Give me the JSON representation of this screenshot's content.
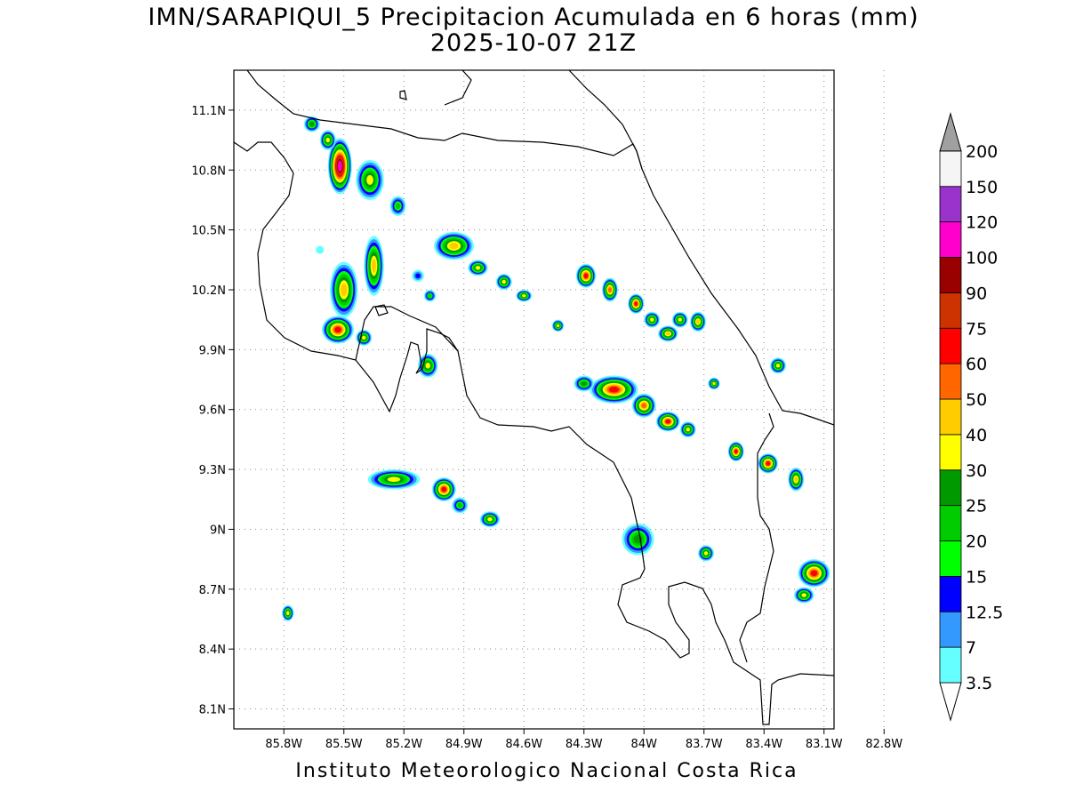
{
  "title_line1": "IMN/SARAPIQUI_5 Precipitacion Acumulada en 6 horas (mm)",
  "title_line2": "2025-10-07 21Z",
  "footer": "Instituto Meteorologico Nacional Costa Rica",
  "map": {
    "lon_range": [
      -86.05,
      -83.05
    ],
    "lat_range": [
      8.0,
      11.3
    ],
    "grid_lines": "dotted",
    "lon_ticks": [
      {
        "value": -85.8,
        "label": "85.8W"
      },
      {
        "value": -85.5,
        "label": "85.5W"
      },
      {
        "value": -85.2,
        "label": "85.2W"
      },
      {
        "value": -84.9,
        "label": "84.9W"
      },
      {
        "value": -84.6,
        "label": "84.6W"
      },
      {
        "value": -84.3,
        "label": "84.3W"
      },
      {
        "value": -84.0,
        "label": "84W"
      },
      {
        "value": -83.7,
        "label": "83.7W"
      },
      {
        "value": -83.4,
        "label": "83.4W"
      },
      {
        "value": -83.1,
        "label": "83.1W"
      },
      {
        "value": -82.8,
        "label": "82.8W"
      }
    ],
    "lat_ticks": [
      {
        "value": 11.1,
        "label": "11.1N"
      },
      {
        "value": 10.8,
        "label": "10.8N"
      },
      {
        "value": 10.5,
        "label": "10.5N"
      },
      {
        "value": 10.2,
        "label": "10.2N"
      },
      {
        "value": 9.9,
        "label": "9.9N"
      },
      {
        "value": 9.6,
        "label": "9.6N"
      },
      {
        "value": 9.3,
        "label": "9.3N"
      },
      {
        "value": 9.0,
        "label": "9N"
      },
      {
        "value": 8.7,
        "label": "8.7N"
      },
      {
        "value": 8.4,
        "label": "8.4N"
      },
      {
        "value": 8.1,
        "label": "8.1N"
      }
    ]
  },
  "colorbar": {
    "levels": [
      {
        "label": "3.5",
        "color": "#66ffff"
      },
      {
        "label": "7",
        "color": "#3399ff"
      },
      {
        "label": "12.5",
        "color": "#0000ff"
      },
      {
        "label": "15",
        "color": "#00ff00"
      },
      {
        "label": "20",
        "color": "#00cc00"
      },
      {
        "label": "25",
        "color": "#009900"
      },
      {
        "label": "30",
        "color": "#ffff00"
      },
      {
        "label": "40",
        "color": "#ffcc00"
      },
      {
        "label": "50",
        "color": "#ff6600"
      },
      {
        "label": "60",
        "color": "#ff0000"
      },
      {
        "label": "75",
        "color": "#cc3300"
      },
      {
        "label": "90",
        "color": "#990000"
      },
      {
        "label": "100",
        "color": "#ff00cc"
      },
      {
        "label": "120",
        "color": "#9933cc"
      },
      {
        "label": "150",
        "color": "#f5f5f5"
      },
      {
        "label": "200",
        "color": "#a0a0a0"
      }
    ]
  },
  "precip_cells": [
    {
      "lon": -85.52,
      "lat": 10.82,
      "rx": 0.06,
      "ry": 0.14,
      "max": "100"
    },
    {
      "lon": -85.58,
      "lat": 10.95,
      "rx": 0.04,
      "ry": 0.05,
      "max": "30"
    },
    {
      "lon": -85.66,
      "lat": 11.03,
      "rx": 0.04,
      "ry": 0.04,
      "max": "25"
    },
    {
      "lon": -85.37,
      "lat": 10.75,
      "rx": 0.07,
      "ry": 0.1,
      "max": "30"
    },
    {
      "lon": -85.23,
      "lat": 10.62,
      "rx": 0.04,
      "ry": 0.05,
      "max": "20"
    },
    {
      "lon": -84.95,
      "lat": 10.42,
      "rx": 0.1,
      "ry": 0.07,
      "max": "40"
    },
    {
      "lon": -84.83,
      "lat": 10.31,
      "rx": 0.05,
      "ry": 0.04,
      "max": "30"
    },
    {
      "lon": -84.7,
      "lat": 10.24,
      "rx": 0.04,
      "ry": 0.04,
      "max": "30"
    },
    {
      "lon": -84.6,
      "lat": 10.17,
      "rx": 0.04,
      "ry": 0.03,
      "max": "30"
    },
    {
      "lon": -85.53,
      "lat": 10.0,
      "rx": 0.08,
      "ry": 0.07,
      "max": "60"
    },
    {
      "lon": -85.5,
      "lat": 10.2,
      "rx": 0.07,
      "ry": 0.14,
      "max": "40"
    },
    {
      "lon": -85.35,
      "lat": 10.32,
      "rx": 0.05,
      "ry": 0.15,
      "max": "40"
    },
    {
      "lon": -85.4,
      "lat": 9.96,
      "rx": 0.04,
      "ry": 0.04,
      "max": "30"
    },
    {
      "lon": -85.08,
      "lat": 9.82,
      "rx": 0.05,
      "ry": 0.06,
      "max": "30"
    },
    {
      "lon": -85.07,
      "lat": 10.17,
      "rx": 0.03,
      "ry": 0.03,
      "max": "20"
    },
    {
      "lon": -85.13,
      "lat": 10.27,
      "rx": 0.03,
      "ry": 0.03,
      "max": "12.5"
    },
    {
      "lon": -85.25,
      "lat": 9.25,
      "rx": 0.13,
      "ry": 0.05,
      "max": "30"
    },
    {
      "lon": -85.0,
      "lat": 9.2,
      "rx": 0.06,
      "ry": 0.06,
      "max": "60"
    },
    {
      "lon": -84.92,
      "lat": 9.12,
      "rx": 0.04,
      "ry": 0.04,
      "max": "20"
    },
    {
      "lon": -84.77,
      "lat": 9.05,
      "rx": 0.05,
      "ry": 0.04,
      "max": "30"
    },
    {
      "lon": -84.29,
      "lat": 10.27,
      "rx": 0.05,
      "ry": 0.06,
      "max": "60"
    },
    {
      "lon": -84.17,
      "lat": 10.2,
      "rx": 0.04,
      "ry": 0.06,
      "max": "50"
    },
    {
      "lon": -84.04,
      "lat": 10.13,
      "rx": 0.04,
      "ry": 0.05,
      "max": "60"
    },
    {
      "lon": -83.96,
      "lat": 10.05,
      "rx": 0.04,
      "ry": 0.04,
      "max": "30"
    },
    {
      "lon": -83.88,
      "lat": 9.98,
      "rx": 0.05,
      "ry": 0.04,
      "max": "40"
    },
    {
      "lon": -83.82,
      "lat": 10.05,
      "rx": 0.04,
      "ry": 0.04,
      "max": "30"
    },
    {
      "lon": -83.73,
      "lat": 10.04,
      "rx": 0.04,
      "ry": 0.05,
      "max": "40"
    },
    {
      "lon": -84.43,
      "lat": 10.02,
      "rx": 0.03,
      "ry": 0.03,
      "max": "30"
    },
    {
      "lon": -84.15,
      "lat": 9.7,
      "rx": 0.12,
      "ry": 0.07,
      "max": "60"
    },
    {
      "lon": -84.0,
      "lat": 9.62,
      "rx": 0.06,
      "ry": 0.06,
      "max": "50"
    },
    {
      "lon": -83.88,
      "lat": 9.54,
      "rx": 0.06,
      "ry": 0.05,
      "max": "60"
    },
    {
      "lon": -84.3,
      "lat": 9.73,
      "rx": 0.05,
      "ry": 0.04,
      "max": "25"
    },
    {
      "lon": -83.78,
      "lat": 9.5,
      "rx": 0.04,
      "ry": 0.04,
      "max": "30"
    },
    {
      "lon": -83.65,
      "lat": 9.73,
      "rx": 0.03,
      "ry": 0.03,
      "max": "30"
    },
    {
      "lon": -83.54,
      "lat": 9.39,
      "rx": 0.04,
      "ry": 0.05,
      "max": "60"
    },
    {
      "lon": -83.38,
      "lat": 9.33,
      "rx": 0.05,
      "ry": 0.05,
      "max": "60"
    },
    {
      "lon": -83.24,
      "lat": 9.25,
      "rx": 0.04,
      "ry": 0.06,
      "max": "40"
    },
    {
      "lon": -83.33,
      "lat": 9.82,
      "rx": 0.04,
      "ry": 0.04,
      "max": "30"
    },
    {
      "lon": -84.03,
      "lat": 8.95,
      "rx": 0.08,
      "ry": 0.08,
      "max": "25"
    },
    {
      "lon": -83.69,
      "lat": 8.88,
      "rx": 0.04,
      "ry": 0.04,
      "max": "30"
    },
    {
      "lon": -83.15,
      "lat": 8.78,
      "rx": 0.08,
      "ry": 0.07,
      "max": "60"
    },
    {
      "lon": -83.2,
      "lat": 8.67,
      "rx": 0.05,
      "ry": 0.04,
      "max": "30"
    },
    {
      "lon": -85.78,
      "lat": 8.58,
      "rx": 0.03,
      "ry": 0.04,
      "max": "30"
    },
    {
      "lon": -85.62,
      "lat": 10.4,
      "rx": 0.02,
      "ry": 0.02,
      "max": "3.5"
    }
  ]
}
